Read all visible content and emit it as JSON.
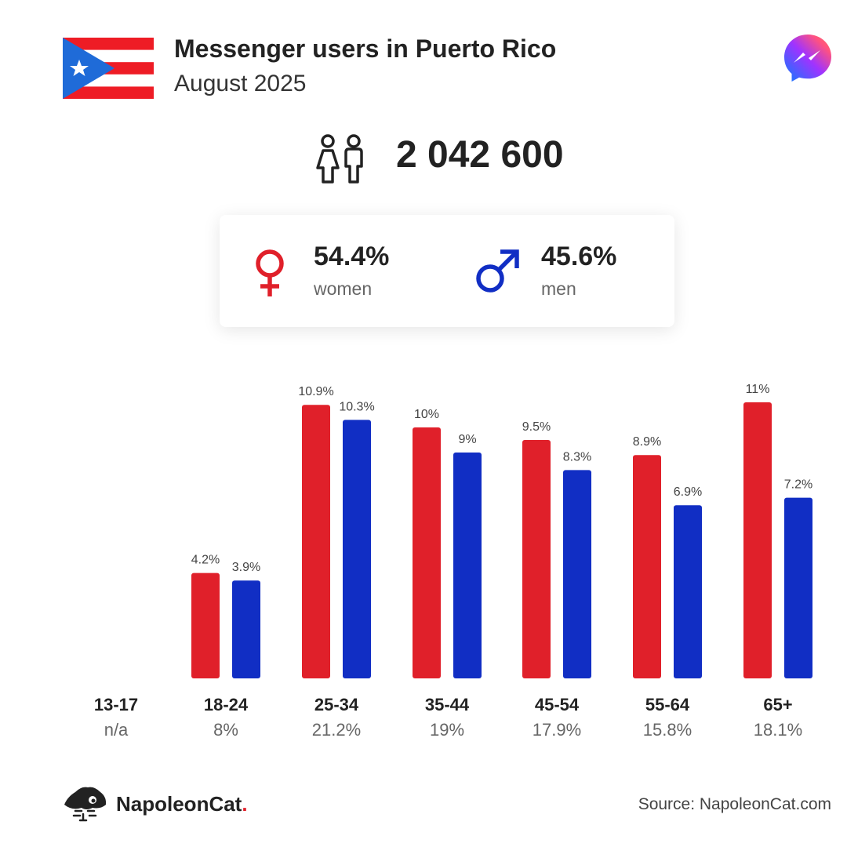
{
  "header": {
    "title": "Messenger users in Puerto Rico",
    "subtitle": "August 2025"
  },
  "total_users": "2 042 600",
  "gender": {
    "women_pct": "54.4%",
    "women_label": "women",
    "men_pct": "45.6%",
    "men_label": "men"
  },
  "colors": {
    "women": "#e0202a",
    "men": "#112ec4"
  },
  "icons": [
    "puerto-rico-flag-icon",
    "messenger-logo-icon",
    "people-icon",
    "female-symbol-icon",
    "male-symbol-icon",
    "napoleoncat-logo-icon"
  ],
  "chart_data": {
    "type": "bar",
    "categories": [
      "13-17",
      "18-24",
      "25-34",
      "35-44",
      "45-54",
      "55-64",
      "65+"
    ],
    "category_totals": [
      "n/a",
      "8%",
      "21.2%",
      "19%",
      "17.9%",
      "15.8%",
      "18.1%"
    ],
    "series": [
      {
        "name": "women",
        "color": "#e0202a",
        "values": [
          null,
          4.2,
          10.9,
          10.0,
          9.5,
          8.9,
          11.0
        ],
        "labels": [
          "",
          "4.2%",
          "10.9%",
          "10%",
          "9.5%",
          "8.9%",
          "11%"
        ]
      },
      {
        "name": "men",
        "color": "#112ec4",
        "values": [
          null,
          3.9,
          10.3,
          9.0,
          8.3,
          6.9,
          7.2
        ],
        "labels": [
          "",
          "3.9%",
          "10.3%",
          "9%",
          "8.3%",
          "6.9%",
          "7.2%"
        ]
      }
    ],
    "ylim": [
      0,
      11
    ]
  },
  "footer": {
    "brand_name": "NapoleonCat",
    "brand_dot": ".",
    "source": "Source: NapoleonCat.com"
  }
}
